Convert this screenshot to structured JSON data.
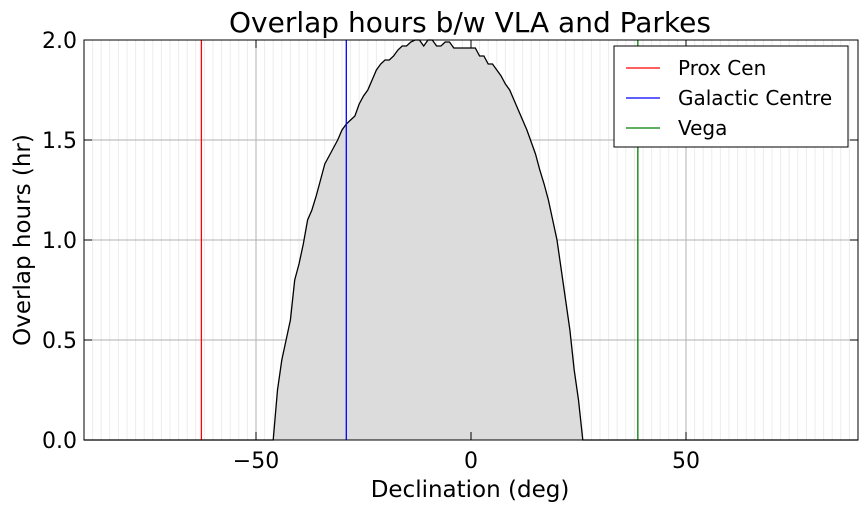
{
  "chart_data": {
    "type": "area",
    "title": "Overlap hours b/w VLA and Parkes",
    "xlabel": "Declination (deg)",
    "ylabel": "Overlap hours (hr)",
    "xlim": [
      -90,
      90
    ],
    "ylim": [
      0.0,
      2.0
    ],
    "x_ticks": [
      -50,
      0,
      50
    ],
    "x_tick_labels": [
      "−50",
      "0",
      "50"
    ],
    "y_ticks": [
      0.0,
      0.5,
      1.0,
      1.5,
      2.0
    ],
    "y_tick_labels": [
      "0.0",
      "0.5",
      "1.0",
      "1.5",
      "2.0"
    ],
    "grid": true,
    "minor_grid_x_step": 2,
    "legend_position": "top-right",
    "fill_color": "#dcdcdc",
    "line_color": "#000000",
    "overlap_curve": {
      "x": [
        -90,
        -46,
        -45,
        -44,
        -43,
        -42,
        -41,
        -40,
        -39,
        -38,
        -37,
        -36,
        -35,
        -34,
        -33,
        -32,
        -31,
        -30,
        -29,
        -28,
        -27,
        -26,
        -25,
        -24,
        -23,
        -22,
        -21,
        -20,
        -19,
        -18,
        -17,
        -16,
        -15,
        -14,
        -13,
        -12,
        -11,
        -10,
        -9,
        -8,
        -7,
        -6,
        -5,
        -4,
        -3,
        -2,
        -1,
        0,
        1,
        2,
        3,
        4,
        5,
        6,
        7,
        8,
        9,
        10,
        11,
        12,
        13,
        14,
        15,
        16,
        17,
        18,
        19,
        20,
        21,
        22,
        23,
        24,
        25,
        26,
        27,
        90
      ],
      "y": [
        0.0,
        0.0,
        0.25,
        0.4,
        0.5,
        0.6,
        0.8,
        0.88,
        0.98,
        1.1,
        1.15,
        1.22,
        1.3,
        1.38,
        1.42,
        1.46,
        1.5,
        1.55,
        1.58,
        1.6,
        1.62,
        1.68,
        1.72,
        1.75,
        1.8,
        1.85,
        1.88,
        1.9,
        1.9,
        1.92,
        1.95,
        1.97,
        1.97,
        1.99,
        2.0,
        2.0,
        1.97,
        2.0,
        2.0,
        1.97,
        1.97,
        1.99,
        1.99,
        1.96,
        1.96,
        1.96,
        1.96,
        1.96,
        1.96,
        1.92,
        1.92,
        1.88,
        1.88,
        1.85,
        1.82,
        1.78,
        1.75,
        1.7,
        1.65,
        1.6,
        1.55,
        1.49,
        1.43,
        1.35,
        1.28,
        1.2,
        1.1,
        1.0,
        0.85,
        0.7,
        0.55,
        0.35,
        0.2,
        0.0,
        0.0,
        0.0
      ]
    },
    "series": [
      {
        "name": "Prox Cen",
        "x": -62.7,
        "color": "#ff0000"
      },
      {
        "name": "Galactic Centre",
        "x": -29.0,
        "color": "#0000ff"
      },
      {
        "name": "Vega",
        "x": 38.8,
        "color": "#008000"
      }
    ]
  }
}
